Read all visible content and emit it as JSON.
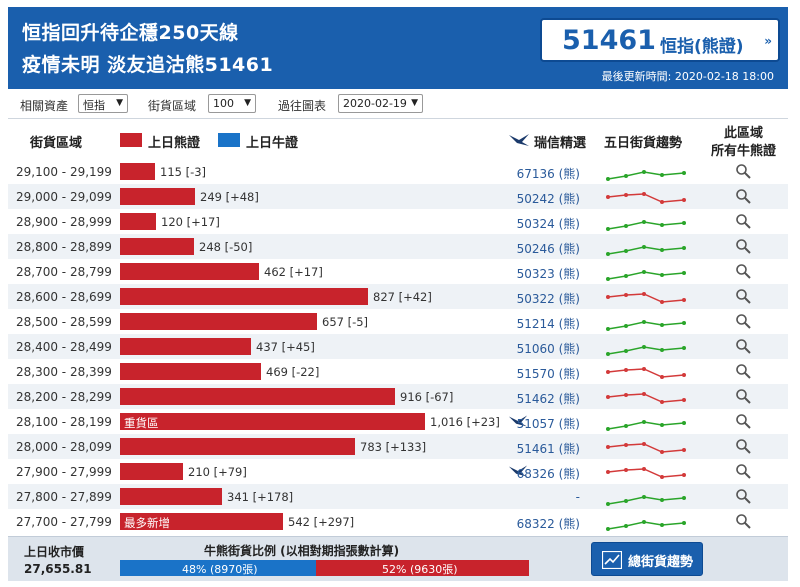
{
  "header": {
    "headline_1": "恒指回升待企穩250天線",
    "headline_2": "疫情未明 淡友追沽熊51461",
    "quote_value": "51461",
    "quote_label": "恒指(熊證)",
    "quote_arrow": "»",
    "update_label": "最後更新時間: 2020-02-18 18:00"
  },
  "filters": {
    "asset_label": "相關資產",
    "asset_value": "恒指",
    "zone_label": "街貨區域",
    "zone_value": "100",
    "history_label": "過往圖表",
    "history_value": "2020-02-19"
  },
  "columns": {
    "zone": "街貨區域",
    "bear_legend": "上日熊證",
    "bull_legend": "上日牛證",
    "pick": "瑞信精選",
    "trend": "五日街貨趨勢",
    "all_line1": "此區域",
    "all_line2": "所有牛熊證"
  },
  "colors": {
    "bear": "#c8232c",
    "bull": "#1a73c8",
    "header": "#1a5fad",
    "spark_up": "#2aa52a",
    "spark_down": "#d33a3a"
  },
  "rows": [
    {
      "range": "29,100 - 29,199",
      "value": 115,
      "value_text": "115 [-3]",
      "tag": "",
      "pick": "67136 (熊)",
      "featured": false,
      "trend": "up"
    },
    {
      "range": "29,000 - 29,099",
      "value": 249,
      "value_text": "249 [+48]",
      "tag": "",
      "pick": "50242 (熊)",
      "featured": false,
      "trend": "down"
    },
    {
      "range": "28,900 - 28,999",
      "value": 120,
      "value_text": "120 [+17]",
      "tag": "",
      "pick": "50324 (熊)",
      "featured": false,
      "trend": "up"
    },
    {
      "range": "28,800 - 28,899",
      "value": 248,
      "value_text": "248 [-50]",
      "tag": "",
      "pick": "50246 (熊)",
      "featured": false,
      "trend": "up"
    },
    {
      "range": "28,700 - 28,799",
      "value": 462,
      "value_text": "462 [+17]",
      "tag": "",
      "pick": "50323 (熊)",
      "featured": false,
      "trend": "up"
    },
    {
      "range": "28,600 - 28,699",
      "value": 827,
      "value_text": "827 [+42]",
      "tag": "",
      "pick": "50322 (熊)",
      "featured": false,
      "trend": "down"
    },
    {
      "range": "28,500 - 28,599",
      "value": 657,
      "value_text": "657 [-5]",
      "tag": "",
      "pick": "51214 (熊)",
      "featured": false,
      "trend": "up"
    },
    {
      "range": "28,400 - 28,499",
      "value": 437,
      "value_text": "437 [+45]",
      "tag": "",
      "pick": "51060 (熊)",
      "featured": false,
      "trend": "up"
    },
    {
      "range": "28,300 - 28,399",
      "value": 469,
      "value_text": "469 [-22]",
      "tag": "",
      "pick": "51570 (熊)",
      "featured": false,
      "trend": "down"
    },
    {
      "range": "28,200 - 28,299",
      "value": 916,
      "value_text": "916 [-67]",
      "tag": "",
      "pick": "51462 (熊)",
      "featured": false,
      "trend": "down"
    },
    {
      "range": "28,100 - 28,199",
      "value": 1016,
      "value_text": "1,016 [+23]",
      "tag": "重貨區",
      "pick": "51057 (熊)",
      "featured": true,
      "trend": "up"
    },
    {
      "range": "28,000 - 28,099",
      "value": 783,
      "value_text": "783 [+133]",
      "tag": "",
      "pick": "51461 (熊)",
      "featured": false,
      "trend": "down"
    },
    {
      "range": "27,900 - 27,999",
      "value": 210,
      "value_text": "210 [+79]",
      "tag": "",
      "pick": "68326 (熊)",
      "featured": true,
      "trend": "down"
    },
    {
      "range": "27,800 - 27,899",
      "value": 341,
      "value_text": "341 [+178]",
      "tag": "",
      "pick": "-",
      "featured": false,
      "trend": "up"
    },
    {
      "range": "27,700 - 27,799",
      "value": 542,
      "value_text": "542 [+297]",
      "tag": "最多新增",
      "pick": "68322 (熊)",
      "featured": false,
      "trend": "up"
    }
  ],
  "footer": {
    "close_label": "上日收市價",
    "close_value": "27,655.81",
    "ratio_title": "牛熊街貨比例 (以相對期指張數計算)",
    "bull_pct": 48,
    "bear_pct": 52,
    "bull_text": "48% (8970張)",
    "bear_text": "52% (9630張)",
    "trend_button": "總街貨趨勢"
  }
}
